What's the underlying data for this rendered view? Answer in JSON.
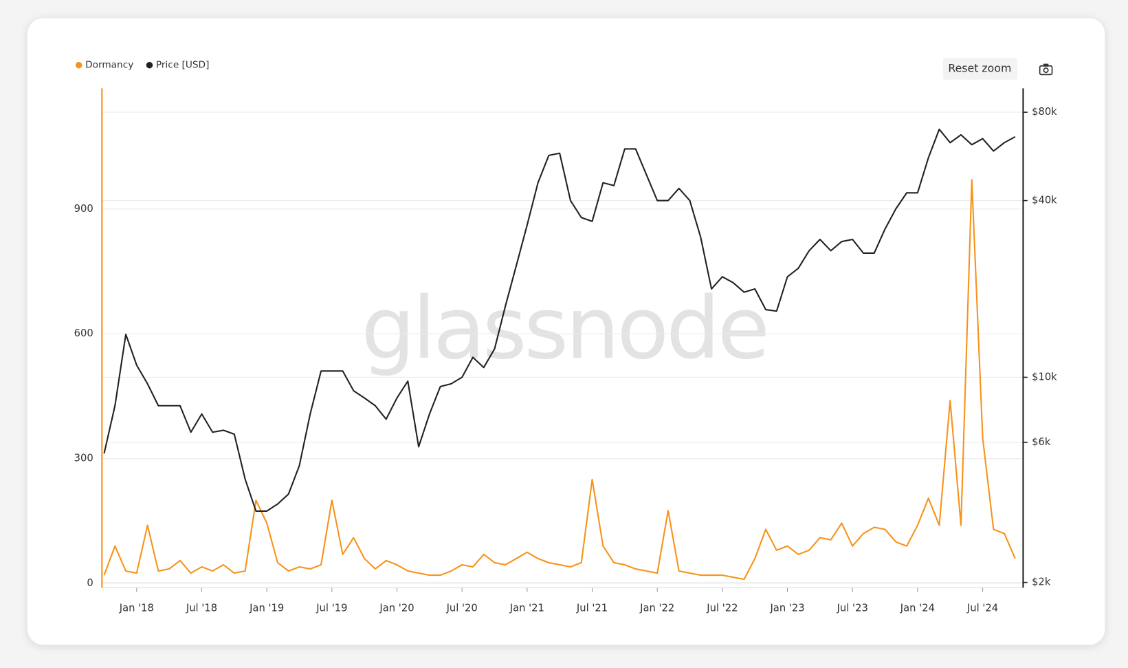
{
  "chart_data": {
    "type": "line",
    "watermark": "glassnode",
    "button": "Reset zoom",
    "x": [
      "2017-10",
      "2017-11",
      "2017-12",
      "2018-01",
      "2018-02",
      "2018-03",
      "2018-04",
      "2018-05",
      "2018-06",
      "2018-07",
      "2018-08",
      "2018-09",
      "2018-10",
      "2018-11",
      "2018-12",
      "2019-01",
      "2019-02",
      "2019-03",
      "2019-04",
      "2019-05",
      "2019-06",
      "2019-07",
      "2019-08",
      "2019-09",
      "2019-10",
      "2019-11",
      "2019-12",
      "2020-01",
      "2020-02",
      "2020-03",
      "2020-04",
      "2020-05",
      "2020-06",
      "2020-07",
      "2020-08",
      "2020-09",
      "2020-10",
      "2020-11",
      "2020-12",
      "2021-01",
      "2021-02",
      "2021-03",
      "2021-04",
      "2021-05",
      "2021-06",
      "2021-07",
      "2021-08",
      "2021-09",
      "2021-10",
      "2021-11",
      "2021-12",
      "2022-01",
      "2022-02",
      "2022-03",
      "2022-04",
      "2022-05",
      "2022-06",
      "2022-07",
      "2022-08",
      "2022-09",
      "2022-10",
      "2022-11",
      "2022-12",
      "2023-01",
      "2023-02",
      "2023-03",
      "2023-04",
      "2023-05",
      "2023-06",
      "2023-07",
      "2023-08",
      "2023-09",
      "2023-10",
      "2023-11",
      "2023-12",
      "2024-01",
      "2024-02",
      "2024-03",
      "2024-04",
      "2024-05",
      "2024-06",
      "2024-07",
      "2024-08",
      "2024-09",
      "2024-10"
    ],
    "xlim": [
      "2017-10",
      "2024-10"
    ],
    "xticks": [
      {
        "value": "2018-01",
        "label": "Jan '18"
      },
      {
        "value": "2018-07",
        "label": "Jul '18"
      },
      {
        "value": "2019-01",
        "label": "Jan '19"
      },
      {
        "value": "2019-07",
        "label": "Jul '19"
      },
      {
        "value": "2020-01",
        "label": "Jan '20"
      },
      {
        "value": "2020-07",
        "label": "Jul '20"
      },
      {
        "value": "2021-01",
        "label": "Jan '21"
      },
      {
        "value": "2021-07",
        "label": "Jul '21"
      },
      {
        "value": "2022-01",
        "label": "Jan '22"
      },
      {
        "value": "2022-07",
        "label": "Jul '22"
      },
      {
        "value": "2023-01",
        "label": "Jan '23"
      },
      {
        "value": "2023-07",
        "label": "Jul '23"
      },
      {
        "value": "2024-01",
        "label": "Jan '24"
      },
      {
        "value": "2024-07",
        "label": "Jul '24"
      }
    ],
    "ylim": [
      -10,
      1190
    ],
    "yticks": [
      0,
      300,
      600,
      900
    ],
    "y2lim": [
      1920,
      96500
    ],
    "y2scale": "log",
    "y2ticks": [
      {
        "value": 2000,
        "label": "$2k"
      },
      {
        "value": 6000,
        "label": "$6k"
      },
      {
        "value": 10000,
        "label": "$10k"
      },
      {
        "value": 40000,
        "label": "$40k"
      },
      {
        "value": 80000,
        "label": "$80k"
      }
    ],
    "grid": true,
    "legend": "top-left",
    "series": [
      {
        "name": "Dormancy",
        "color": "#f7931a",
        "axis": "y",
        "values": [
          20,
          90,
          30,
          25,
          140,
          30,
          35,
          55,
          25,
          40,
          30,
          45,
          25,
          30,
          200,
          145,
          50,
          30,
          40,
          35,
          45,
          200,
          70,
          110,
          60,
          35,
          55,
          45,
          30,
          25,
          20,
          20,
          30,
          45,
          40,
          70,
          50,
          45,
          60,
          75,
          60,
          50,
          45,
          40,
          50,
          250,
          90,
          50,
          45,
          35,
          30,
          25,
          175,
          30,
          25,
          20,
          20,
          20,
          15,
          10,
          60,
          130,
          80,
          90,
          70,
          80,
          110,
          105,
          145,
          90,
          120,
          135,
          130,
          100,
          90,
          140,
          205,
          140,
          440,
          140,
          970,
          350,
          130,
          120,
          60
        ]
      },
      {
        "name": "Price [USD]",
        "color": "#222222",
        "axis": "y2",
        "values": [
          5500,
          8000,
          14000,
          11000,
          9500,
          8000,
          8000,
          8000,
          6500,
          7500,
          6500,
          6600,
          6400,
          4500,
          3500,
          3500,
          3700,
          4000,
          5000,
          7500,
          10500,
          10500,
          10500,
          9000,
          8500,
          8000,
          7200,
          8500,
          9700,
          5800,
          7500,
          9300,
          9500,
          10000,
          11700,
          10800,
          12500,
          17500,
          24000,
          33000,
          46000,
          57000,
          58000,
          40000,
          35000,
          34000,
          46000,
          45000,
          60000,
          60000,
          49000,
          40000,
          40000,
          44000,
          40000,
          30000,
          20000,
          22000,
          21000,
          19500,
          20000,
          17000,
          16800,
          22000,
          23500,
          27000,
          29500,
          27000,
          29000,
          29500,
          26500,
          26500,
          32000,
          37500,
          42500,
          42500,
          56000,
          70000,
          63000,
          67000,
          62000,
          65000,
          59000,
          63000,
          66000
        ]
      }
    ]
  }
}
